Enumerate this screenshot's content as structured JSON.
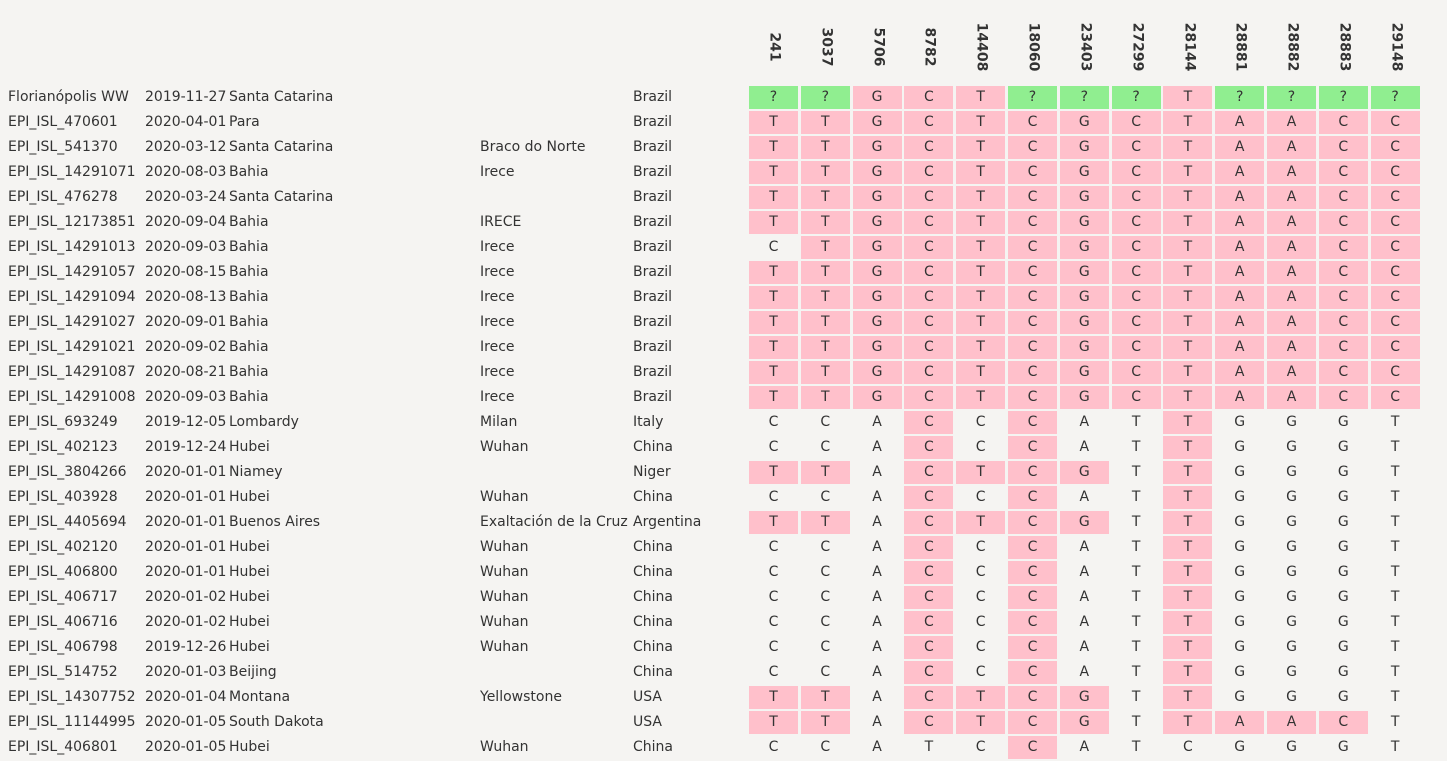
{
  "positions": [
    "241",
    "3037",
    "5706",
    "8782",
    "14408",
    "18060",
    "23403",
    "27299",
    "28144",
    "28881",
    "28882",
    "28883",
    "29148"
  ],
  "rows": [
    {
      "id": "Florianópolis WW",
      "date": "2019-11-27",
      "region": "Santa Catarina",
      "city": "",
      "country": "Brazil",
      "bases": [
        "?",
        "?",
        "G",
        "C",
        "T",
        "?",
        "?",
        "?",
        "T",
        "?",
        "?",
        "?",
        "?"
      ],
      "hl": [
        "g",
        "g",
        "p",
        "p",
        "p",
        "g",
        "g",
        "g",
        "p",
        "g",
        "g",
        "g",
        "g"
      ]
    },
    {
      "id": "EPI_ISL_470601",
      "date": "2020-04-01",
      "region": "Para",
      "city": "",
      "country": "Brazil",
      "bases": [
        "T",
        "T",
        "G",
        "C",
        "T",
        "C",
        "G",
        "C",
        "T",
        "A",
        "A",
        "C",
        "C"
      ],
      "hl": [
        "p",
        "p",
        "p",
        "p",
        "p",
        "p",
        "p",
        "p",
        "p",
        "p",
        "p",
        "p",
        "p"
      ]
    },
    {
      "id": "EPI_ISL_541370",
      "date": "2020-03-12",
      "region": "Santa Catarina",
      "city": "Braco do Norte",
      "country": "Brazil",
      "bases": [
        "T",
        "T",
        "G",
        "C",
        "T",
        "C",
        "G",
        "C",
        "T",
        "A",
        "A",
        "C",
        "C"
      ],
      "hl": [
        "p",
        "p",
        "p",
        "p",
        "p",
        "p",
        "p",
        "p",
        "p",
        "p",
        "p",
        "p",
        "p"
      ]
    },
    {
      "id": "EPI_ISL_14291071",
      "date": "2020-08-03",
      "region": "Bahia",
      "city": "Irece",
      "country": "Brazil",
      "bases": [
        "T",
        "T",
        "G",
        "C",
        "T",
        "C",
        "G",
        "C",
        "T",
        "A",
        "A",
        "C",
        "C"
      ],
      "hl": [
        "p",
        "p",
        "p",
        "p",
        "p",
        "p",
        "p",
        "p",
        "p",
        "p",
        "p",
        "p",
        "p"
      ]
    },
    {
      "id": "EPI_ISL_476278",
      "date": "2020-03-24",
      "region": "Santa Catarina",
      "city": "",
      "country": "Brazil",
      "bases": [
        "T",
        "T",
        "G",
        "C",
        "T",
        "C",
        "G",
        "C",
        "T",
        "A",
        "A",
        "C",
        "C"
      ],
      "hl": [
        "p",
        "p",
        "p",
        "p",
        "p",
        "p",
        "p",
        "p",
        "p",
        "p",
        "p",
        "p",
        "p"
      ]
    },
    {
      "id": "EPI_ISL_12173851",
      "date": "2020-09-04",
      "region": "Bahia",
      "city": "IRECE",
      "country": "Brazil",
      "bases": [
        "T",
        "T",
        "G",
        "C",
        "T",
        "C",
        "G",
        "C",
        "T",
        "A",
        "A",
        "C",
        "C"
      ],
      "hl": [
        "p",
        "p",
        "p",
        "p",
        "p",
        "p",
        "p",
        "p",
        "p",
        "p",
        "p",
        "p",
        "p"
      ]
    },
    {
      "id": "EPI_ISL_14291013",
      "date": "2020-09-03",
      "region": "Bahia",
      "city": "Irece",
      "country": "Brazil",
      "bases": [
        "C",
        "T",
        "G",
        "C",
        "T",
        "C",
        "G",
        "C",
        "T",
        "A",
        "A",
        "C",
        "C"
      ],
      "hl": [
        "n",
        "p",
        "p",
        "p",
        "p",
        "p",
        "p",
        "p",
        "p",
        "p",
        "p",
        "p",
        "p"
      ]
    },
    {
      "id": "EPI_ISL_14291057",
      "date": "2020-08-15",
      "region": "Bahia",
      "city": "Irece",
      "country": "Brazil",
      "bases": [
        "T",
        "T",
        "G",
        "C",
        "T",
        "C",
        "G",
        "C",
        "T",
        "A",
        "A",
        "C",
        "C"
      ],
      "hl": [
        "p",
        "p",
        "p",
        "p",
        "p",
        "p",
        "p",
        "p",
        "p",
        "p",
        "p",
        "p",
        "p"
      ]
    },
    {
      "id": "EPI_ISL_14291094",
      "date": "2020-08-13",
      "region": "Bahia",
      "city": "Irece",
      "country": "Brazil",
      "bases": [
        "T",
        "T",
        "G",
        "C",
        "T",
        "C",
        "G",
        "C",
        "T",
        "A",
        "A",
        "C",
        "C"
      ],
      "hl": [
        "p",
        "p",
        "p",
        "p",
        "p",
        "p",
        "p",
        "p",
        "p",
        "p",
        "p",
        "p",
        "p"
      ]
    },
    {
      "id": "EPI_ISL_14291027",
      "date": "2020-09-01",
      "region": "Bahia",
      "city": "Irece",
      "country": "Brazil",
      "bases": [
        "T",
        "T",
        "G",
        "C",
        "T",
        "C",
        "G",
        "C",
        "T",
        "A",
        "A",
        "C",
        "C"
      ],
      "hl": [
        "p",
        "p",
        "p",
        "p",
        "p",
        "p",
        "p",
        "p",
        "p",
        "p",
        "p",
        "p",
        "p"
      ]
    },
    {
      "id": "EPI_ISL_14291021",
      "date": "2020-09-02",
      "region": "Bahia",
      "city": "Irece",
      "country": "Brazil",
      "bases": [
        "T",
        "T",
        "G",
        "C",
        "T",
        "C",
        "G",
        "C",
        "T",
        "A",
        "A",
        "C",
        "C"
      ],
      "hl": [
        "p",
        "p",
        "p",
        "p",
        "p",
        "p",
        "p",
        "p",
        "p",
        "p",
        "p",
        "p",
        "p"
      ]
    },
    {
      "id": "EPI_ISL_14291087",
      "date": "2020-08-21",
      "region": "Bahia",
      "city": "Irece",
      "country": "Brazil",
      "bases": [
        "T",
        "T",
        "G",
        "C",
        "T",
        "C",
        "G",
        "C",
        "T",
        "A",
        "A",
        "C",
        "C"
      ],
      "hl": [
        "p",
        "p",
        "p",
        "p",
        "p",
        "p",
        "p",
        "p",
        "p",
        "p",
        "p",
        "p",
        "p"
      ]
    },
    {
      "id": "EPI_ISL_14291008",
      "date": "2020-09-03",
      "region": "Bahia",
      "city": "Irece",
      "country": "Brazil",
      "bases": [
        "T",
        "T",
        "G",
        "C",
        "T",
        "C",
        "G",
        "C",
        "T",
        "A",
        "A",
        "C",
        "C"
      ],
      "hl": [
        "p",
        "p",
        "p",
        "p",
        "p",
        "p",
        "p",
        "p",
        "p",
        "p",
        "p",
        "p",
        "p"
      ]
    },
    {
      "id": "EPI_ISL_693249",
      "date": "2019-12-05",
      "region": "Lombardy",
      "city": "Milan",
      "country": "Italy",
      "bases": [
        "C",
        "C",
        "A",
        "C",
        "C",
        "C",
        "A",
        "T",
        "T",
        "G",
        "G",
        "G",
        "T"
      ],
      "hl": [
        "n",
        "n",
        "n",
        "p",
        "n",
        "p",
        "n",
        "n",
        "p",
        "n",
        "n",
        "n",
        "n"
      ]
    },
    {
      "id": "EPI_ISL_402123",
      "date": "2019-12-24",
      "region": "Hubei",
      "city": "Wuhan",
      "country": "China",
      "bases": [
        "C",
        "C",
        "A",
        "C",
        "C",
        "C",
        "A",
        "T",
        "T",
        "G",
        "G",
        "G",
        "T"
      ],
      "hl": [
        "n",
        "n",
        "n",
        "p",
        "n",
        "p",
        "n",
        "n",
        "p",
        "n",
        "n",
        "n",
        "n"
      ]
    },
    {
      "id": "EPI_ISL_3804266",
      "date": "2020-01-01",
      "region": "Niamey",
      "city": "",
      "country": "Niger",
      "bases": [
        "T",
        "T",
        "A",
        "C",
        "T",
        "C",
        "G",
        "T",
        "T",
        "G",
        "G",
        "G",
        "T"
      ],
      "hl": [
        "p",
        "p",
        "n",
        "p",
        "p",
        "p",
        "p",
        "n",
        "p",
        "n",
        "n",
        "n",
        "n"
      ]
    },
    {
      "id": "EPI_ISL_403928",
      "date": "2020-01-01",
      "region": "Hubei",
      "city": "Wuhan",
      "country": "China",
      "bases": [
        "C",
        "C",
        "A",
        "C",
        "C",
        "C",
        "A",
        "T",
        "T",
        "G",
        "G",
        "G",
        "T"
      ],
      "hl": [
        "n",
        "n",
        "n",
        "p",
        "n",
        "p",
        "n",
        "n",
        "p",
        "n",
        "n",
        "n",
        "n"
      ]
    },
    {
      "id": "EPI_ISL_4405694",
      "date": "2020-01-01",
      "region": "Buenos Aires",
      "city": "Exaltación de la Cruz",
      "country": "Argentina",
      "bases": [
        "T",
        "T",
        "A",
        "C",
        "T",
        "C",
        "G",
        "T",
        "T",
        "G",
        "G",
        "G",
        "T"
      ],
      "hl": [
        "p",
        "p",
        "n",
        "p",
        "p",
        "p",
        "p",
        "n",
        "p",
        "n",
        "n",
        "n",
        "n"
      ]
    },
    {
      "id": "EPI_ISL_402120",
      "date": "2020-01-01",
      "region": "Hubei",
      "city": "Wuhan",
      "country": "China",
      "bases": [
        "C",
        "C",
        "A",
        "C",
        "C",
        "C",
        "A",
        "T",
        "T",
        "G",
        "G",
        "G",
        "T"
      ],
      "hl": [
        "n",
        "n",
        "n",
        "p",
        "n",
        "p",
        "n",
        "n",
        "p",
        "n",
        "n",
        "n",
        "n"
      ]
    },
    {
      "id": "EPI_ISL_406800",
      "date": "2020-01-01",
      "region": "Hubei",
      "city": "Wuhan",
      "country": "China",
      "bases": [
        "C",
        "C",
        "A",
        "C",
        "C",
        "C",
        "A",
        "T",
        "T",
        "G",
        "G",
        "G",
        "T"
      ],
      "hl": [
        "n",
        "n",
        "n",
        "p",
        "n",
        "p",
        "n",
        "n",
        "p",
        "n",
        "n",
        "n",
        "n"
      ]
    },
    {
      "id": "EPI_ISL_406717",
      "date": "2020-01-02",
      "region": "Hubei",
      "city": "Wuhan",
      "country": "China",
      "bases": [
        "C",
        "C",
        "A",
        "C",
        "C",
        "C",
        "A",
        "T",
        "T",
        "G",
        "G",
        "G",
        "T"
      ],
      "hl": [
        "n",
        "n",
        "n",
        "p",
        "n",
        "p",
        "n",
        "n",
        "p",
        "n",
        "n",
        "n",
        "n"
      ]
    },
    {
      "id": "EPI_ISL_406716",
      "date": "2020-01-02",
      "region": "Hubei",
      "city": "Wuhan",
      "country": "China",
      "bases": [
        "C",
        "C",
        "A",
        "C",
        "C",
        "C",
        "A",
        "T",
        "T",
        "G",
        "G",
        "G",
        "T"
      ],
      "hl": [
        "n",
        "n",
        "n",
        "p",
        "n",
        "p",
        "n",
        "n",
        "p",
        "n",
        "n",
        "n",
        "n"
      ]
    },
    {
      "id": "EPI_ISL_406798",
      "date": "2019-12-26",
      "region": "Hubei",
      "city": "Wuhan",
      "country": "China",
      "bases": [
        "C",
        "C",
        "A",
        "C",
        "C",
        "C",
        "A",
        "T",
        "T",
        "G",
        "G",
        "G",
        "T"
      ],
      "hl": [
        "n",
        "n",
        "n",
        "p",
        "n",
        "p",
        "n",
        "n",
        "p",
        "n",
        "n",
        "n",
        "n"
      ]
    },
    {
      "id": "EPI_ISL_514752",
      "date": "2020-01-03",
      "region": "Beijing",
      "city": "",
      "country": "China",
      "bases": [
        "C",
        "C",
        "A",
        "C",
        "C",
        "C",
        "A",
        "T",
        "T",
        "G",
        "G",
        "G",
        "T"
      ],
      "hl": [
        "n",
        "n",
        "n",
        "p",
        "n",
        "p",
        "n",
        "n",
        "p",
        "n",
        "n",
        "n",
        "n"
      ]
    },
    {
      "id": "EPI_ISL_14307752",
      "date": "2020-01-04",
      "region": "Montana",
      "city": "Yellowstone",
      "country": "USA",
      "bases": [
        "T",
        "T",
        "A",
        "C",
        "T",
        "C",
        "G",
        "T",
        "T",
        "G",
        "G",
        "G",
        "T"
      ],
      "hl": [
        "p",
        "p",
        "n",
        "p",
        "p",
        "p",
        "p",
        "n",
        "p",
        "n",
        "n",
        "n",
        "n"
      ]
    },
    {
      "id": "EPI_ISL_11144995",
      "date": "2020-01-05",
      "region": "South Dakota",
      "city": "",
      "country": "USA",
      "bases": [
        "T",
        "T",
        "A",
        "C",
        "T",
        "C",
        "G",
        "T",
        "T",
        "A",
        "A",
        "C",
        "T"
      ],
      "hl": [
        "p",
        "p",
        "n",
        "p",
        "p",
        "p",
        "p",
        "n",
        "p",
        "p",
        "p",
        "p",
        "n"
      ]
    },
    {
      "id": "EPI_ISL_406801",
      "date": "2020-01-05",
      "region": "Hubei",
      "city": "Wuhan",
      "country": "China",
      "bases": [
        "C",
        "C",
        "A",
        "T",
        "C",
        "C",
        "A",
        "T",
        "C",
        "G",
        "G",
        "G",
        "T"
      ],
      "hl": [
        "n",
        "n",
        "n",
        "n",
        "n",
        "p",
        "n",
        "n",
        "n",
        "n",
        "n",
        "n",
        "n"
      ]
    }
  ]
}
